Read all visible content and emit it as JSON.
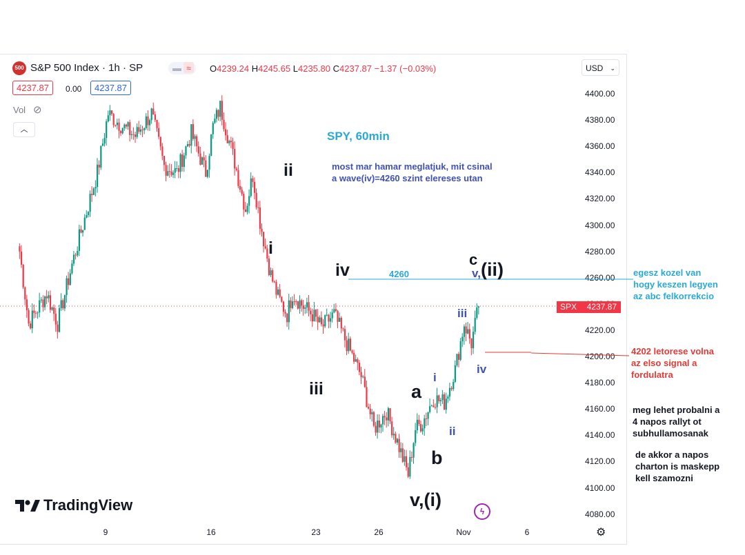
{
  "header": {
    "symbol_badge": "500",
    "title": "S&P 500 Index · 1h · SP",
    "ohlc": {
      "o_label": "O",
      "o": "4239.24",
      "h_label": "H",
      "h": "4245.65",
      "l_label": "L",
      "l": "4235.80",
      "c_label": "C",
      "c": "4237.87",
      "change": "−1.37 (−0.03%)"
    },
    "bid": "4237.87",
    "spread": "0.00",
    "ask": "4237.87",
    "vol_label": "Vol",
    "currency": "USD"
  },
  "chart_data": {
    "type": "candlestick",
    "ylim": [
      4075,
      4410
    ],
    "y_ticks": [
      "4400.00",
      "4380.00",
      "4360.00",
      "4340.00",
      "4320.00",
      "4300.00",
      "4280.00",
      "4260.00",
      "4240.00",
      "4220.00",
      "4200.00",
      "4180.00",
      "4160.00",
      "4140.00",
      "4120.00",
      "4100.00",
      "4080.00"
    ],
    "x_ticks": [
      "9",
      "16",
      "23",
      "26",
      "Nov",
      "6"
    ],
    "last_price_label": {
      "symbol": "SPX",
      "value": "4237.87"
    },
    "level_4260": {
      "label": "4260",
      "value": 4260
    },
    "level_4202": {
      "value": 4202
    },
    "anchors": [
      {
        "c": 7,
        "p": 4280
      },
      {
        "c": 12,
        "p": 4225
      },
      {
        "c": 22,
        "p": 4248
      },
      {
        "c": 28,
        "p": 4225
      },
      {
        "c": 36,
        "p": 4270
      },
      {
        "c": 44,
        "p": 4310
      },
      {
        "c": 50,
        "p": 4340
      },
      {
        "c": 56,
        "p": 4385
      },
      {
        "c": 64,
        "p": 4375
      },
      {
        "c": 71,
        "p": 4368
      },
      {
        "c": 80,
        "p": 4385
      },
      {
        "c": 87,
        "p": 4345
      },
      {
        "c": 94,
        "p": 4340
      },
      {
        "c": 102,
        "p": 4370
      },
      {
        "c": 110,
        "p": 4340
      },
      {
        "c": 114,
        "p": 4375
      },
      {
        "c": 118,
        "p": 4390
      },
      {
        "c": 126,
        "p": 4348
      },
      {
        "c": 132,
        "p": 4312
      },
      {
        "c": 136,
        "p": 4338
      },
      {
        "c": 140,
        "p": 4303
      },
      {
        "c": 146,
        "p": 4262
      },
      {
        "c": 150,
        "p": 4245
      },
      {
        "c": 155,
        "p": 4232
      },
      {
        "c": 158,
        "p": 4248
      },
      {
        "c": 164,
        "p": 4238
      },
      {
        "c": 169,
        "p": 4232
      },
      {
        "c": 174,
        "p": 4222
      },
      {
        "c": 181,
        "p": 4232
      },
      {
        "c": 188,
        "p": 4210
      },
      {
        "c": 196,
        "p": 4185
      },
      {
        "c": 203,
        "p": 4145
      },
      {
        "c": 210,
        "p": 4158
      },
      {
        "c": 216,
        "p": 4135
      },
      {
        "c": 222,
        "p": 4110
      },
      {
        "c": 226,
        "p": 4145
      },
      {
        "c": 230,
        "p": 4150
      },
      {
        "c": 236,
        "p": 4168
      },
      {
        "c": 242,
        "p": 4165
      },
      {
        "c": 248,
        "p": 4190
      },
      {
        "c": 253,
        "p": 4225
      },
      {
        "c": 257,
        "p": 4210
      },
      {
        "c": 261,
        "p": 4238
      }
    ]
  },
  "annotations": {
    "title": "SPY, 60min",
    "comment_top": [
      "most mar hamar meglatjuk, mit csinal",
      "a wave(iv)=4260 szint elereses utan"
    ],
    "waves": {
      "ii": "ii",
      "i": "i",
      "iii": "iii",
      "iv": "iv",
      "v_i": "v,(i)",
      "a": "a",
      "b": "b",
      "c": "c",
      "v_comma": "v,",
      "paren_ii": "(ii)",
      "small_i": "i",
      "small_ii": "ii",
      "small_iii": "iii",
      "small_iv": "iv"
    },
    "note_cyan": [
      "egesz kozel van",
      "hogy keszen legyen",
      "az abc felkorrekcio"
    ],
    "note_red": [
      "4202 letorese volna",
      "az elso signal a",
      "fordulatra"
    ],
    "note_black1": [
      "meg lehet probalni a",
      "4 napos rallyt ot",
      "subhullamosanak"
    ],
    "note_black2": [
      "de akkor a napos",
      "charton is maskepp",
      "kell szamozni"
    ]
  },
  "logo_text": "TradingView",
  "colors": {
    "up": "#089981",
    "down": "#f23645",
    "cyan": "#29a9d6",
    "wave_blue": "#3f51b5",
    "note_red": "#e53935"
  }
}
